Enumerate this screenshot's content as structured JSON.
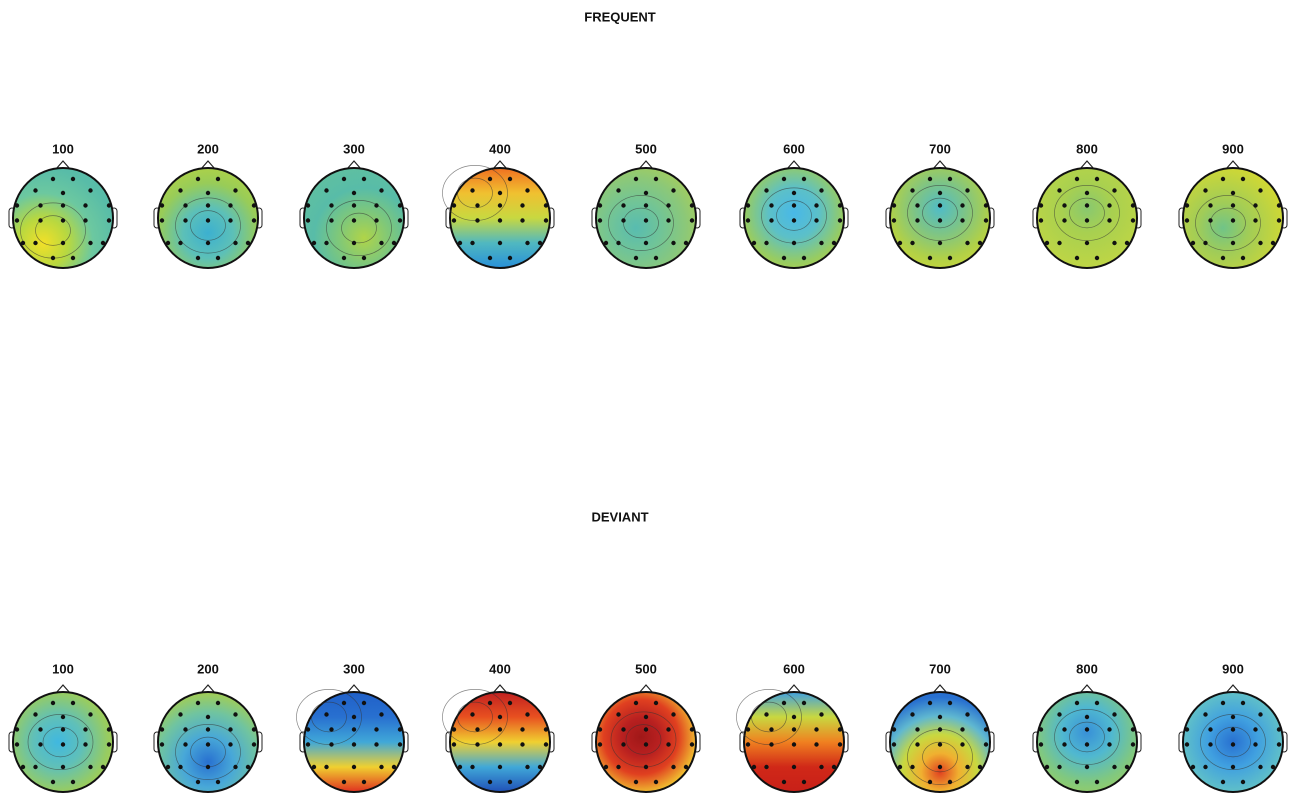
{
  "panels": [
    {
      "title": "FREQUENT",
      "labels": [
        "100",
        "200",
        "300",
        "400",
        "500",
        "600",
        "700",
        "800",
        "900"
      ]
    },
    {
      "title": "DEVIANT",
      "labels": [
        "100",
        "200",
        "300",
        "400",
        "500",
        "600",
        "700",
        "800",
        "900"
      ]
    }
  ]
}
